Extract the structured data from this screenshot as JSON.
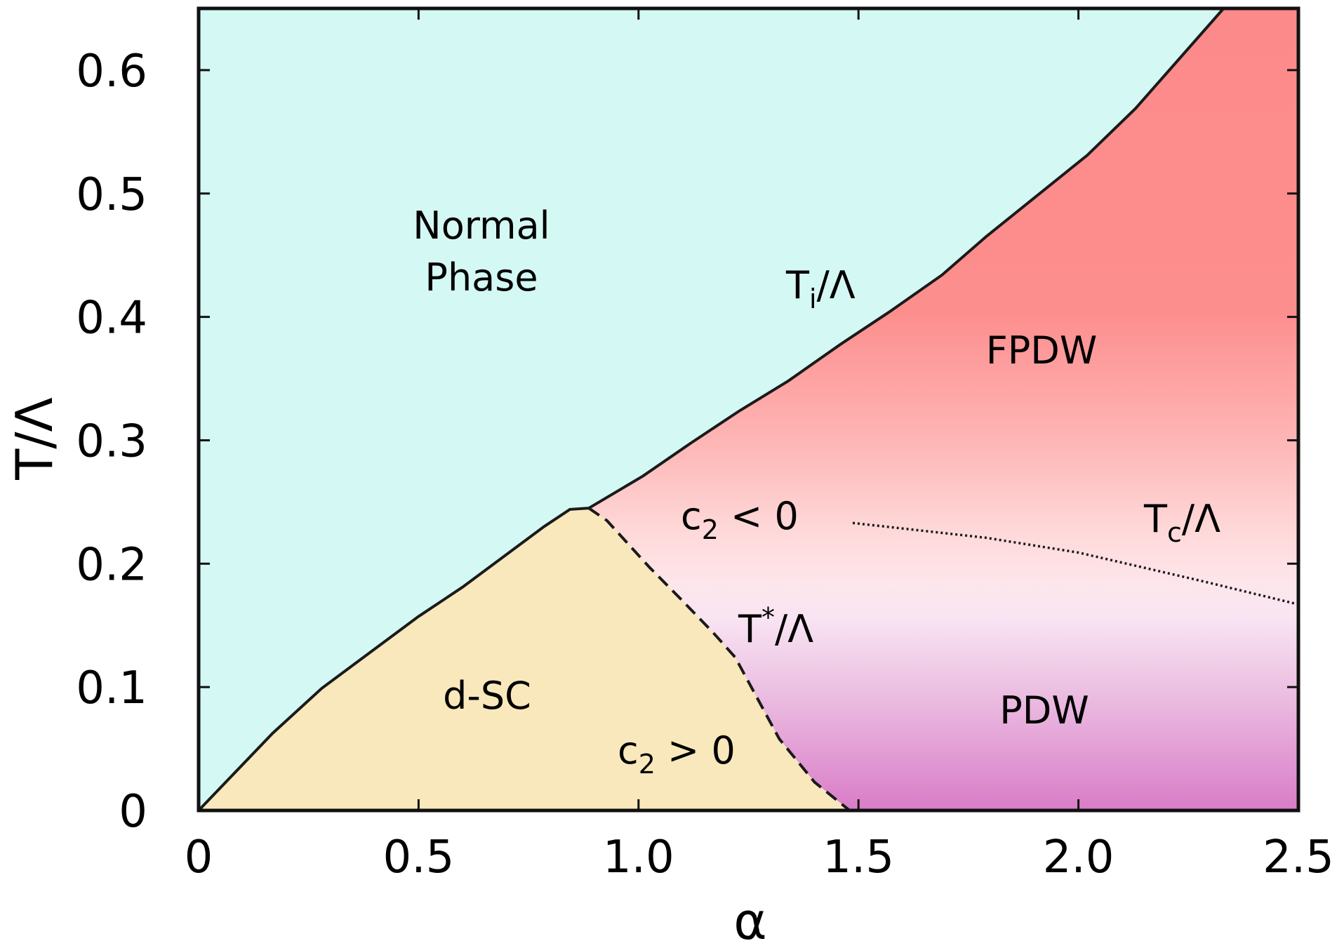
{
  "chart_data": {
    "type": "area",
    "xlabel": "α",
    "ylabel": "T/Λ",
    "xlim": [
      0,
      2.5
    ],
    "ylim": [
      0,
      0.65
    ],
    "xticks": [
      {
        "value": 0,
        "label": "0"
      },
      {
        "value": 0.5,
        "label": "0.5"
      },
      {
        "value": 1.0,
        "label": "1.0"
      },
      {
        "value": 1.5,
        "label": "1.5"
      },
      {
        "value": 2.0,
        "label": "2.0"
      },
      {
        "value": 2.5,
        "label": "2.5"
      }
    ],
    "yticks": [
      {
        "value": 0,
        "label": "0"
      },
      {
        "value": 0.1,
        "label": "0.1"
      },
      {
        "value": 0.2,
        "label": "0.2"
      },
      {
        "value": 0.3,
        "label": "0.3"
      },
      {
        "value": 0.4,
        "label": "0.4"
      },
      {
        "value": 0.5,
        "label": "0.5"
      },
      {
        "value": 0.6,
        "label": "0.6"
      }
    ],
    "grid": false,
    "colors": {
      "normal": "#d4f8f4",
      "dsc": "#f9e8bc",
      "fpdw_top": "#fd8a8a",
      "mid": "#fde6ec",
      "pdw_bottom": "#d97cc8",
      "line": "#1a1a1a"
    },
    "series": [
      {
        "style": "solid",
        "x": [
          0,
          0.168,
          0.28,
          0.499,
          0.6,
          0.785,
          0.844,
          0.887,
          1.01,
          1.12,
          1.23,
          1.34,
          1.46,
          1.57,
          1.69,
          1.79,
          2.02,
          2.13,
          2.33
        ],
        "y": [
          0,
          0.0625,
          0.099,
          0.157,
          0.181,
          0.23,
          0.244,
          0.245,
          0.271,
          0.298,
          0.324,
          0.348,
          0.378,
          0.404,
          0.434,
          0.465,
          0.531,
          0.569,
          0.65
        ]
      },
      {
        "style": "dashed",
        "x": [
          0.887,
          0.928,
          1.025,
          1.097,
          1.17,
          1.22,
          1.273,
          1.32,
          1.4,
          1.48
        ],
        "y": [
          0.245,
          0.235,
          0.197,
          0.171,
          0.144,
          0.124,
          0.089,
          0.058,
          0.023,
          0
        ]
      },
      {
        "style": "dotted",
        "x": [
          1.487,
          1.79,
          2.0,
          2.28,
          2.5
        ],
        "y": [
          0.233,
          0.221,
          0.209,
          0.186,
          0.167
        ]
      }
    ],
    "annotations": {
      "normal_1": "Normal",
      "normal_2": "Phase",
      "ti": {
        "main": "T",
        "sub": "i",
        "rest": "/Λ"
      },
      "fpdw": "FPDW",
      "c2neg": {
        "main": "c",
        "sub": "2",
        "rest": " < 0"
      },
      "tc": {
        "main": "T",
        "sub": "c",
        "rest": "/Λ"
      },
      "tstar": {
        "main": "T",
        "sup": "*",
        "rest": "/Λ"
      },
      "dsc": "d-SC",
      "c2pos": {
        "main": "c",
        "sub": "2",
        "rest": " > 0"
      },
      "pdw": "PDW"
    }
  }
}
